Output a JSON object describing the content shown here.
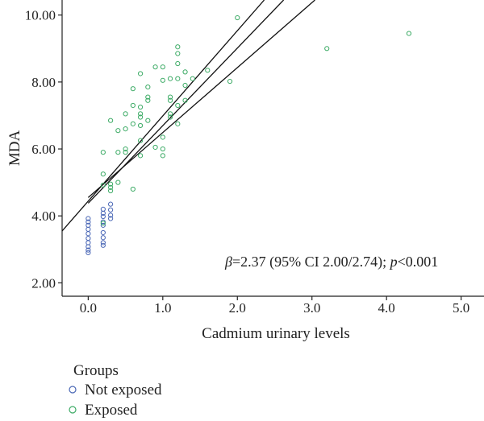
{
  "chart_data": {
    "type": "scatter",
    "xlabel": "Cadmium urinary levels",
    "ylabel": "MDA",
    "xlim": [
      -0.35,
      5.35
    ],
    "ylim": [
      1.6,
      10.45
    ],
    "x_ticks": [
      {
        "value": 0,
        "label": "0.0"
      },
      {
        "value": 1,
        "label": "1.0"
      },
      {
        "value": 2,
        "label": "2.0"
      },
      {
        "value": 3,
        "label": "3.0"
      },
      {
        "value": 4,
        "label": "4.0"
      },
      {
        "value": 5,
        "label": "5.0"
      }
    ],
    "y_ticks": [
      {
        "value": 2,
        "label": "2.00"
      },
      {
        "value": 4,
        "label": "4.00"
      },
      {
        "value": 6,
        "label": "6.00"
      },
      {
        "value": 8,
        "label": "8.00"
      },
      {
        "value": 10,
        "label": "10.00"
      }
    ],
    "grid": false,
    "annotation": {
      "beta": "β",
      "text1": "=2.37 (95% CI 2.00/2.74); ",
      "p": "p",
      "text2": "<0.001"
    },
    "legend": {
      "title": "Groups",
      "position": "bottom-left"
    },
    "series": [
      {
        "name": "Not exposed",
        "color": "#4a67b6",
        "points": [
          [
            0.0,
            2.9
          ],
          [
            0.0,
            2.98
          ],
          [
            0.0,
            3.08
          ],
          [
            0.0,
            3.2
          ],
          [
            0.0,
            3.33
          ],
          [
            0.0,
            3.47
          ],
          [
            0.0,
            3.6
          ],
          [
            0.0,
            3.72
          ],
          [
            0.0,
            3.82
          ],
          [
            0.0,
            3.92
          ],
          [
            0.2,
            3.12
          ],
          [
            0.2,
            3.2
          ],
          [
            0.2,
            3.35
          ],
          [
            0.2,
            3.5
          ],
          [
            0.2,
            3.72
          ],
          [
            0.2,
            3.82
          ],
          [
            0.2,
            3.98
          ],
          [
            0.2,
            4.08
          ],
          [
            0.2,
            4.2
          ],
          [
            0.3,
            3.92
          ],
          [
            0.3,
            4.02
          ],
          [
            0.3,
            4.18
          ],
          [
            0.3,
            4.35
          ]
        ]
      },
      {
        "name": "Exposed",
        "color": "#3dab66",
        "points": [
          [
            0.2,
            5.25
          ],
          [
            0.2,
            5.9
          ],
          [
            0.2,
            4.92
          ],
          [
            0.2,
            3.78
          ],
          [
            0.3,
            4.75
          ],
          [
            0.3,
            4.85
          ],
          [
            0.3,
            4.95
          ],
          [
            0.3,
            6.85
          ],
          [
            0.4,
            5.0
          ],
          [
            0.4,
            5.9
          ],
          [
            0.4,
            6.55
          ],
          [
            0.5,
            5.9
          ],
          [
            0.5,
            6.0
          ],
          [
            0.5,
            6.6
          ],
          [
            0.5,
            7.05
          ],
          [
            0.6,
            4.8
          ],
          [
            0.6,
            6.75
          ],
          [
            0.6,
            7.3
          ],
          [
            0.6,
            7.8
          ],
          [
            0.7,
            5.8
          ],
          [
            0.7,
            6.25
          ],
          [
            0.7,
            6.7
          ],
          [
            0.7,
            6.95
          ],
          [
            0.7,
            7.05
          ],
          [
            0.7,
            7.25
          ],
          [
            0.7,
            8.25
          ],
          [
            0.8,
            6.85
          ],
          [
            0.8,
            7.45
          ],
          [
            0.8,
            7.55
          ],
          [
            0.8,
            7.85
          ],
          [
            0.9,
            6.05
          ],
          [
            0.9,
            8.45
          ],
          [
            1.0,
            5.8
          ],
          [
            1.0,
            6.0
          ],
          [
            1.0,
            6.35
          ],
          [
            1.0,
            8.05
          ],
          [
            1.0,
            8.45
          ],
          [
            1.1,
            6.95
          ],
          [
            1.1,
            7.05
          ],
          [
            1.1,
            7.45
          ],
          [
            1.1,
            7.55
          ],
          [
            1.1,
            8.1
          ],
          [
            1.2,
            6.75
          ],
          [
            1.2,
            7.3
          ],
          [
            1.2,
            8.1
          ],
          [
            1.2,
            8.55
          ],
          [
            1.2,
            8.85
          ],
          [
            1.2,
            9.05
          ],
          [
            1.3,
            7.45
          ],
          [
            1.3,
            7.9
          ],
          [
            1.3,
            8.3
          ],
          [
            1.4,
            8.1
          ],
          [
            1.6,
            8.35
          ],
          [
            1.9,
            8.02
          ],
          [
            2.0,
            9.92
          ],
          [
            3.2,
            9.0
          ],
          [
            4.3,
            9.45
          ]
        ]
      }
    ],
    "fit_lines": [
      {
        "name": "upper",
        "x0": -0.35,
        "y0": 3.55,
        "x1": 2.36,
        "y1": 10.45
      },
      {
        "name": "fit",
        "x0": 0.0,
        "y0": 4.38,
        "x1": 2.62,
        "y1": 10.45
      },
      {
        "name": "lower",
        "x0": 0.0,
        "y0": 4.55,
        "x1": 3.04,
        "y1": 10.45
      }
    ]
  }
}
